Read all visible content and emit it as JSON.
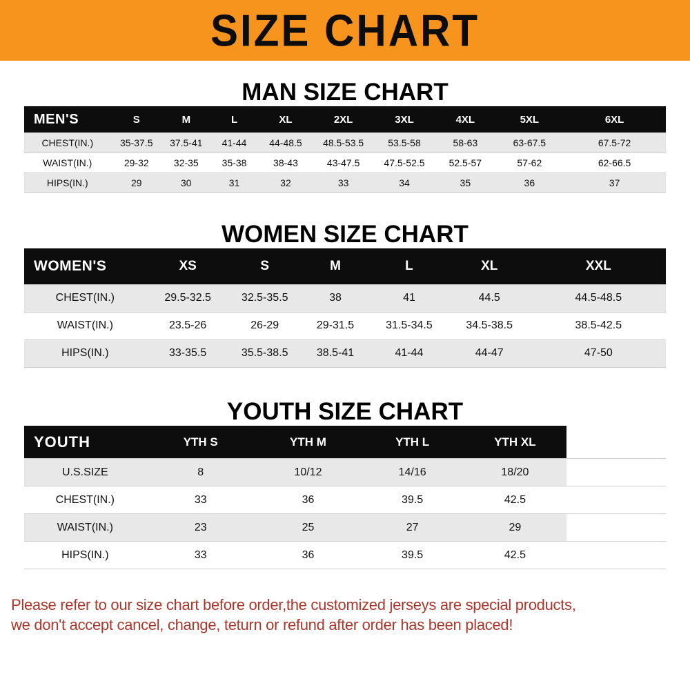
{
  "banner": {
    "title": "SIZE CHART"
  },
  "sections": {
    "men": {
      "heading": "MAN SIZE CHART"
    },
    "women": {
      "heading": "WOMEN SIZE CHART"
    },
    "youth": {
      "heading": "YOUTH SIZE CHART"
    }
  },
  "tables": {
    "men": {
      "header": [
        "MEN'S",
        "S",
        "M",
        "L",
        "XL",
        "2XL",
        "3XL",
        "4XL",
        "5XL",
        "6XL"
      ],
      "rows": [
        [
          "CHEST(IN.)",
          "35-37.5",
          "37.5-41",
          "41-44",
          "44-48.5",
          "48.5-53.5",
          "53.5-58",
          "58-63",
          "63-67.5",
          "67.5-72"
        ],
        [
          "WAIST(IN.)",
          "29-32",
          "32-35",
          "35-38",
          "38-43",
          "43-47.5",
          "47.5-52.5",
          "52.5-57",
          "57-62",
          "62-66.5"
        ],
        [
          "HIPS(IN.)",
          "29",
          "30",
          "31",
          "32",
          "33",
          "34",
          "35",
          "36",
          "37"
        ]
      ]
    },
    "women": {
      "header": [
        "WOMEN'S",
        "XS",
        "S",
        "M",
        "L",
        "XL",
        "XXL"
      ],
      "rows": [
        [
          "CHEST(IN.)",
          "29.5-32.5",
          "32.5-35.5",
          "38",
          "41",
          "44.5",
          "44.5-48.5"
        ],
        [
          "WAIST(IN.)",
          "23.5-26",
          "26-29",
          "29-31.5",
          "31.5-34.5",
          "34.5-38.5",
          "38.5-42.5"
        ],
        [
          "HIPS(IN.)",
          "33-35.5",
          "35.5-38.5",
          "38.5-41",
          "41-44",
          "44-47",
          "47-50"
        ]
      ]
    },
    "youth": {
      "header": [
        "YOUTH",
        "YTH S",
        "YTH M",
        "YTH L",
        "YTH XL"
      ],
      "rows": [
        [
          "U.S.SIZE",
          "8",
          "10/12",
          "14/16",
          "18/20"
        ],
        [
          "CHEST(IN.)",
          "33",
          "36",
          "39.5",
          "42.5"
        ],
        [
          "WAIST(IN.)",
          "23",
          "25",
          "27",
          "29"
        ],
        [
          "HIPS(IN.)",
          "33",
          "36",
          "39.5",
          "42.5"
        ]
      ]
    }
  },
  "footer": {
    "line1": "Please refer to our size chart before order,the customized jerseys are special products,",
    "line2": "we don't accept cancel, change, teturn or refund after order has been placed!"
  },
  "colors": {
    "banner_background": "#f7941d",
    "table_header_background": "#0d0d0d",
    "row_stripe": "#e8e8e8",
    "footer_text": "#a8382c"
  }
}
